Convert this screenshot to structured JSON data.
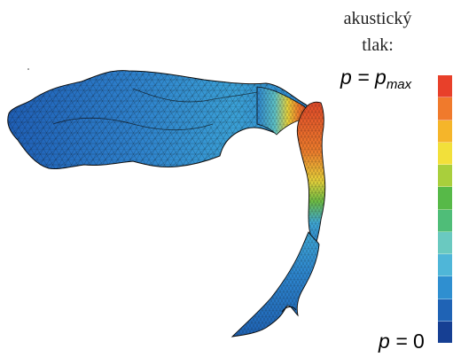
{
  "legend": {
    "title_line1": "akustický",
    "title_line2": "tlak:",
    "label_max_var": "p",
    "label_max_eq": " = ",
    "label_max_p": "p",
    "label_max_sub": "max",
    "label_min_var": "p",
    "label_min_eq": " = ",
    "label_min_value": "0",
    "colorbar_colors_top_to_bottom": [
      "#e8402a",
      "#f07a2c",
      "#f5b52a",
      "#f2e03a",
      "#a9cf3c",
      "#57b948",
      "#4fbd78",
      "#6ac9c0",
      "#4fb6d8",
      "#2f8fd0",
      "#1f63b5",
      "#163f93"
    ]
  },
  "mesh": {
    "colors": {
      "low": "#1f5fb6",
      "low_mid": "#2d86cf",
      "mid": "#3fa8d6",
      "cyan": "#5fc3c6",
      "green": "#6cbd46",
      "yellow": "#e9d23a",
      "orange": "#ef7e2c",
      "high": "#e24a2a",
      "edge": "#0c0c0c"
    }
  }
}
